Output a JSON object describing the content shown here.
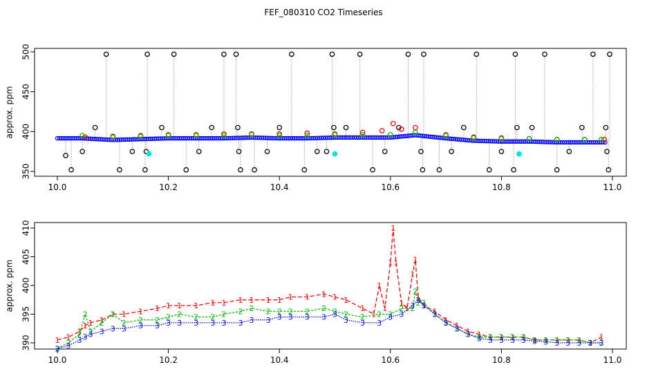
{
  "title": "FEF_080310  CO2 Timeseries",
  "colors": {
    "black": "#000000",
    "red": "#ff0000",
    "green": "#00c000",
    "blue": "#0000ff",
    "cyan": "#00e5e5",
    "gray": "#888888"
  },
  "chart_data": [
    {
      "type": "scatter",
      "title": "",
      "xlabel": "",
      "ylabel": "approx. ppm",
      "xlim": [
        10.0,
        11.0
      ],
      "ylim": [
        350,
        500
      ],
      "xticks": [
        "10.0",
        "10.2",
        "10.4",
        "10.6",
        "10.8",
        "11.0"
      ],
      "yticks": [
        "350",
        "400",
        "450",
        "500"
      ],
      "series": [
        {
          "color": "black",
          "x": [
            10.015,
            10.025,
            10.045,
            10.068,
            10.088,
            10.112,
            10.135,
            10.158,
            10.16,
            10.162,
            10.188,
            10.21,
            10.232,
            10.255,
            10.278,
            10.3,
            10.322,
            10.325,
            10.327,
            10.33,
            10.355,
            10.378,
            10.4,
            10.422,
            10.445,
            10.468,
            10.485,
            10.495,
            10.498,
            10.52,
            10.545,
            10.568,
            10.59,
            10.615,
            10.632,
            10.655,
            10.658,
            10.66,
            10.688,
            10.71,
            10.732,
            10.755,
            10.778,
            10.8,
            10.822,
            10.825,
            10.828,
            10.855,
            10.878,
            10.9,
            10.922,
            10.945,
            10.965,
            10.988,
            10.99,
            10.993,
            10.995
          ],
          "y": [
            370,
            352,
            375,
            405,
            497,
            352,
            375,
            352,
            375,
            497,
            405,
            497,
            352,
            375,
            405,
            497,
            497,
            405,
            375,
            352,
            352,
            375,
            405,
            497,
            352,
            375,
            375,
            497,
            405,
            405,
            497,
            352,
            375,
            405,
            497,
            375,
            352,
            497,
            352,
            375,
            405,
            497,
            352,
            375,
            352,
            497,
            405,
            405,
            497,
            352,
            375,
            405,
            497,
            405,
            375,
            352,
            497
          ]
        },
        {
          "color": "red",
          "x": [
            10.05,
            10.1,
            10.15,
            10.2,
            10.25,
            10.3,
            10.35,
            10.4,
            10.45,
            10.5,
            10.55,
            10.585,
            10.605,
            10.62,
            10.645,
            10.7,
            10.75,
            10.8,
            10.85,
            10.9,
            10.95,
            10.985
          ],
          "y": [
            393,
            394,
            395,
            396,
            396,
            397,
            397,
            397,
            398,
            397,
            399,
            401,
            410,
            403,
            405,
            396,
            393,
            392,
            391,
            390,
            390,
            390
          ]
        },
        {
          "color": "green",
          "x": [
            10.045,
            10.1,
            10.15,
            10.2,
            10.25,
            10.3,
            10.35,
            10.4,
            10.45,
            10.5,
            10.55,
            10.6,
            10.645,
            10.7,
            10.75,
            10.8,
            10.85,
            10.9,
            10.95,
            10.98
          ],
          "y": [
            395,
            393,
            394,
            395,
            395,
            395,
            396,
            395,
            395,
            396,
            396,
            396,
            399,
            395,
            392,
            391,
            391,
            390,
            390,
            390
          ]
        },
        {
          "color": "cyan",
          "x": [
            10.165,
            10.5,
            10.832
          ],
          "y": [
            372,
            372,
            372
          ]
        }
      ]
    },
    {
      "type": "line",
      "title": "",
      "xlabel": "",
      "ylabel": "approx. ppm",
      "xlim": [
        10.0,
        11.0
      ],
      "ylim": [
        390,
        410
      ],
      "xticks": [
        "10.0",
        "10.2",
        "10.4",
        "10.6",
        "10.8",
        "11.0"
      ],
      "yticks": [
        "390",
        "395",
        "400",
        "405",
        "410"
      ],
      "series": [
        {
          "name": "1",
          "color": "red",
          "x": [
            10.0,
            10.02,
            10.04,
            10.05,
            10.06,
            10.08,
            10.1,
            10.12,
            10.15,
            10.18,
            10.2,
            10.22,
            10.25,
            10.28,
            10.3,
            10.33,
            10.35,
            10.38,
            10.4,
            10.42,
            10.45,
            10.48,
            10.5,
            10.52,
            10.55,
            10.57,
            10.58,
            10.59,
            10.6,
            10.605,
            10.61,
            10.62,
            10.63,
            10.64,
            10.645,
            10.65,
            10.66,
            10.68,
            10.7,
            10.72,
            10.74,
            10.76,
            10.78,
            10.8,
            10.82,
            10.84,
            10.86,
            10.88,
            10.9,
            10.92,
            10.94,
            10.96,
            10.98
          ],
          "y": [
            390.5,
            391.0,
            392.0,
            393.0,
            393.5,
            394.0,
            395.0,
            395.0,
            395.5,
            396.0,
            396.5,
            396.5,
            396.5,
            397.0,
            397.0,
            397.5,
            397.5,
            397.5,
            397.5,
            398.0,
            398.0,
            398.5,
            398.0,
            397.5,
            396.0,
            395.0,
            400.0,
            396.0,
            404.0,
            410.0,
            404.0,
            397.0,
            396.0,
            402.0,
            404.5,
            398.0,
            396.5,
            395.5,
            394.0,
            393.0,
            392.0,
            391.5,
            391.0,
            391.0,
            391.0,
            391.0,
            390.5,
            390.5,
            390.5,
            390.5,
            390.5,
            390.0,
            391.0
          ]
        },
        {
          "name": "2",
          "color": "green",
          "x": [
            10.0,
            10.02,
            10.04,
            10.05,
            10.06,
            10.08,
            10.1,
            10.12,
            10.15,
            10.18,
            10.2,
            10.22,
            10.25,
            10.28,
            10.3,
            10.33,
            10.35,
            10.38,
            10.4,
            10.42,
            10.45,
            10.48,
            10.5,
            10.52,
            10.55,
            10.58,
            10.6,
            10.62,
            10.64,
            10.645,
            10.65,
            10.66,
            10.68,
            10.7,
            10.72,
            10.74,
            10.76,
            10.78,
            10.8,
            10.82,
            10.84,
            10.86,
            10.88,
            10.9,
            10.92,
            10.94,
            10.96,
            10.98
          ],
          "y": [
            389.0,
            390.0,
            391.5,
            395.0,
            392.0,
            393.5,
            395.0,
            393.5,
            394.0,
            394.0,
            394.5,
            395.0,
            394.5,
            394.5,
            395.0,
            395.5,
            396.0,
            395.5,
            395.5,
            395.5,
            395.5,
            396.0,
            395.5,
            395.0,
            394.5,
            395.0,
            395.0,
            396.0,
            396.0,
            399.0,
            397.0,
            397.0,
            395.0,
            393.5,
            392.5,
            391.5,
            391.0,
            391.0,
            391.0,
            391.0,
            391.0,
            390.5,
            390.5,
            390.5,
            390.5,
            390.5,
            390.0,
            390.0
          ]
        },
        {
          "name": "3",
          "color": "blue",
          "x": [
            10.0,
            10.02,
            10.04,
            10.05,
            10.06,
            10.08,
            10.1,
            10.12,
            10.15,
            10.18,
            10.2,
            10.22,
            10.25,
            10.28,
            10.3,
            10.33,
            10.35,
            10.38,
            10.4,
            10.42,
            10.45,
            10.48,
            10.5,
            10.52,
            10.55,
            10.58,
            10.6,
            10.62,
            10.64,
            10.65,
            10.66,
            10.68,
            10.7,
            10.72,
            10.74,
            10.76,
            10.78,
            10.8,
            10.82,
            10.84,
            10.86,
            10.88,
            10.9,
            10.92,
            10.94,
            10.96,
            10.98
          ],
          "y": [
            389.0,
            389.5,
            390.5,
            391.0,
            391.5,
            392.0,
            392.5,
            392.5,
            393.0,
            393.0,
            393.5,
            393.5,
            393.5,
            393.5,
            393.5,
            393.5,
            394.0,
            394.0,
            394.5,
            394.5,
            394.5,
            394.5,
            395.0,
            394.0,
            393.5,
            393.5,
            394.5,
            395.0,
            396.5,
            397.5,
            396.5,
            395.0,
            393.5,
            392.5,
            391.5,
            390.8,
            390.5,
            390.5,
            390.5,
            390.5,
            390.3,
            390.2,
            390.0,
            390.0,
            390.0,
            390.0,
            390.0
          ]
        }
      ]
    }
  ]
}
